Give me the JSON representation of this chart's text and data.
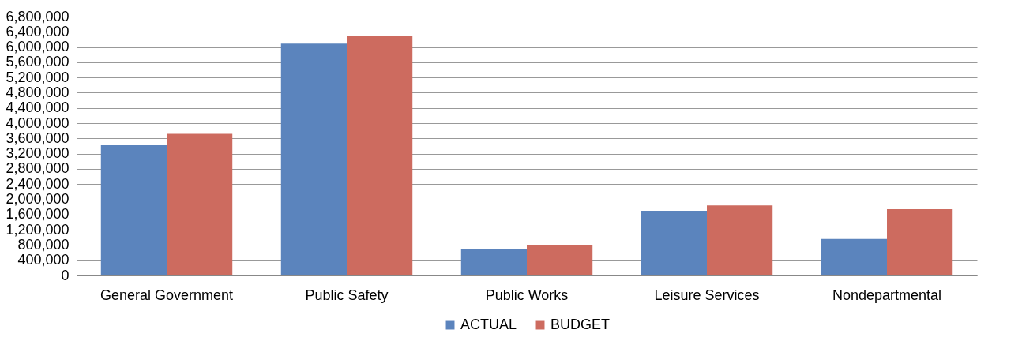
{
  "chart_data": {
    "type": "bar",
    "categories": [
      "General Government",
      "Public Safety",
      "Public Works",
      "Leisure Services",
      "Nondepartmental"
    ],
    "series": [
      {
        "name": "ACTUAL",
        "color": "#5b84bd",
        "values": [
          3420000,
          6090000,
          690000,
          1700000,
          960000
        ]
      },
      {
        "name": "BUDGET",
        "color": "#cd6b5f",
        "values": [
          3720000,
          6290000,
          800000,
          1840000,
          1740000
        ]
      }
    ],
    "ylim": [
      0,
      6800000
    ],
    "yticks": [
      0,
      {
        "value": 400000,
        "label": "400,000"
      },
      {
        "value": 800000,
        "label": "800,000"
      },
      {
        "value": 1200000,
        "label": "1,200,000"
      },
      {
        "value": 1600000,
        "label": "1,600,000"
      },
      {
        "value": 2000000,
        "label": "2,000,000"
      },
      {
        "value": 2400000,
        "label": "2,400,000"
      },
      {
        "value": 2800000,
        "label": "2,800,000"
      },
      {
        "value": 3200000,
        "label": "3,200,000"
      },
      {
        "value": 3600000,
        "label": "3,600,000"
      },
      {
        "value": 4000000,
        "label": "4,000,000"
      },
      {
        "value": 4400000,
        "label": "4,400,000"
      },
      {
        "value": 4800000,
        "label": "4,800,000"
      },
      {
        "value": 5200000,
        "label": "5,200,000"
      },
      {
        "value": 5600000,
        "label": "5,600,000"
      },
      {
        "value": 6000000,
        "label": "6,000,000"
      },
      {
        "value": 6400000,
        "label": "6,400,000"
      },
      {
        "value": 6800000,
        "label": "6,800,000"
      }
    ],
    "grid": "y",
    "legend": "bottom"
  }
}
